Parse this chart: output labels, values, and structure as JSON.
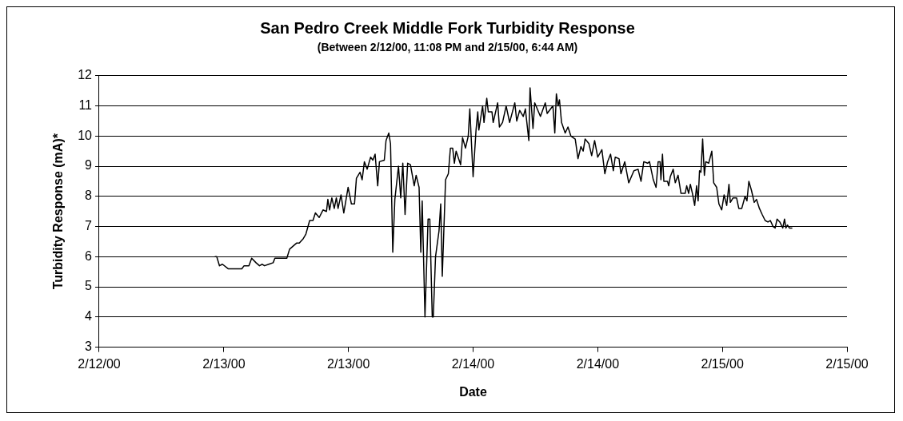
{
  "chart_data": {
    "type": "line",
    "title": "San Pedro Creek Middle Fork Turbidity Response",
    "subtitle": "(Between 2/12/00, 11:08 PM and 2/15/00, 6:44 AM)",
    "xlabel": "Date",
    "ylabel": "Turbidity Response (mA)*",
    "xlim": [
      "2000-02-12T12:00",
      "2000-02-15T12:00"
    ],
    "xticks": [
      {
        "value": "2000-02-12T12:00",
        "label": "2/12/00"
      },
      {
        "value": "2000-02-13T00:00",
        "label": "2/13/00"
      },
      {
        "value": "2000-02-13T12:00",
        "label": "2/13/00"
      },
      {
        "value": "2000-02-14T00:00",
        "label": "2/14/00"
      },
      {
        "value": "2000-02-14T12:00",
        "label": "2/14/00"
      },
      {
        "value": "2000-02-15T00:00",
        "label": "2/15/00"
      },
      {
        "value": "2000-02-15T12:00",
        "label": "2/15/00"
      }
    ],
    "ylim": [
      3,
      12
    ],
    "yticks": [
      3,
      4,
      5,
      6,
      7,
      8,
      9,
      10,
      11,
      12
    ],
    "grid": "y",
    "legend": false,
    "marker": "none",
    "line_style": "solid",
    "series": [
      {
        "color": "#000000",
        "x": [
          "2000-02-12T23:08",
          "2000-02-12T23:19",
          "2000-02-12T23:35",
          "2000-02-12T23:52",
          "2000-02-13T00:25",
          "2000-02-13T01:44",
          "2000-02-13T01:57",
          "2000-02-13T02:25",
          "2000-02-13T02:41",
          "2000-02-13T03:06",
          "2000-02-13T03:26",
          "2000-02-13T03:42",
          "2000-02-13T03:55",
          "2000-02-13T04:20",
          "2000-02-13T04:45",
          "2000-02-13T04:55",
          "2000-02-13T06:04",
          "2000-02-13T06:20",
          "2000-02-13T06:40",
          "2000-02-13T07:00",
          "2000-02-13T07:16",
          "2000-02-13T07:39",
          "2000-02-13T07:54",
          "2000-02-13T08:16",
          "2000-02-13T08:35",
          "2000-02-13T08:49",
          "2000-02-13T09:11",
          "2000-02-13T09:33",
          "2000-02-13T09:53",
          "2000-02-13T10:01",
          "2000-02-13T10:11",
          "2000-02-13T10:24",
          "2000-02-13T10:38",
          "2000-02-13T10:50",
          "2000-02-13T11:00",
          "2000-02-13T11:17",
          "2000-02-13T11:33",
          "2000-02-13T11:58",
          "2000-02-13T12:17",
          "2000-02-13T12:35",
          "2000-02-13T12:46",
          "2000-02-13T13:07",
          "2000-02-13T13:19",
          "2000-02-13T13:32",
          "2000-02-13T13:48",
          "2000-02-13T14:08",
          "2000-02-13T14:21",
          "2000-02-13T14:34",
          "2000-02-13T14:49",
          "2000-02-13T14:59",
          "2000-02-13T15:27",
          "2000-02-13T15:37",
          "2000-02-13T15:53",
          "2000-02-13T16:03",
          "2000-02-13T16:16",
          "2000-02-13T16:28",
          "2000-02-13T16:49",
          "2000-02-13T17:02",
          "2000-02-13T17:14",
          "2000-02-13T17:27",
          "2000-02-13T17:42",
          "2000-02-13T17:58",
          "2000-02-13T18:20",
          "2000-02-13T18:31",
          "2000-02-13T18:48",
          "2000-02-13T18:58",
          "2000-02-13T19:06",
          "2000-02-13T19:22",
          "2000-02-13T19:40",
          "2000-02-13T19:50",
          "2000-02-13T20:04",
          "2000-02-13T20:10",
          "2000-02-13T20:23",
          "2000-02-13T20:43",
          "2000-02-13T20:53",
          "2000-02-13T21:02",
          "2000-02-13T21:21",
          "2000-02-13T21:37",
          "2000-02-13T21:49",
          "2000-02-13T22:02",
          "2000-02-13T22:12",
          "2000-02-13T22:22",
          "2000-02-13T22:48",
          "2000-02-13T22:59",
          "2000-02-13T23:16",
          "2000-02-13T23:32",
          "2000-02-13T23:41",
          "2000-02-14T00:00",
          "2000-02-14T00:17",
          "2000-02-14T00:27",
          "2000-02-14T00:33",
          "2000-02-14T00:55",
          "2000-02-14T01:03",
          "2000-02-14T01:19",
          "2000-02-14T01:28",
          "2000-02-14T01:49",
          "2000-02-14T01:56",
          "2000-02-14T02:22",
          "2000-02-14T02:32",
          "2000-02-14T02:50",
          "2000-02-14T03:11",
          "2000-02-14T03:31",
          "2000-02-14T04:01",
          "2000-02-14T04:12",
          "2000-02-14T04:29",
          "2000-02-14T04:50",
          "2000-02-14T05:02",
          "2000-02-14T05:22",
          "2000-02-14T05:29",
          "2000-02-14T05:46",
          "2000-02-14T05:56",
          "2000-02-14T06:29",
          "2000-02-14T06:57",
          "2000-02-14T07:08",
          "2000-02-14T07:41",
          "2000-02-14T07:52",
          "2000-02-14T08:01",
          "2000-02-14T08:11",
          "2000-02-14T08:19",
          "2000-02-14T08:31",
          "2000-02-14T08:52",
          "2000-02-14T09:08",
          "2000-02-14T09:25",
          "2000-02-14T09:50",
          "2000-02-14T10:06",
          "2000-02-14T10:23",
          "2000-02-14T10:36",
          "2000-02-14T10:47",
          "2000-02-14T11:09",
          "2000-02-14T11:25",
          "2000-02-14T11:42",
          "2000-02-14T12:00",
          "2000-02-14T12:24",
          "2000-02-14T12:41",
          "2000-02-14T12:57",
          "2000-02-14T13:14",
          "2000-02-14T13:30",
          "2000-02-14T13:41",
          "2000-02-14T14:03",
          "2000-02-14T14:14",
          "2000-02-14T14:36",
          "2000-02-14T14:59",
          "2000-02-14T15:29",
          "2000-02-14T15:53",
          "2000-02-14T16:10",
          "2000-02-14T16:26",
          "2000-02-14T16:48",
          "2000-02-14T16:59",
          "2000-02-14T17:21",
          "2000-02-14T17:37",
          "2000-02-14T17:49",
          "2000-02-14T18:00",
          "2000-02-14T18:05",
          "2000-02-14T18:14",
          "2000-02-14T18:22",
          "2000-02-14T18:43",
          "2000-02-14T18:50",
          "2000-02-14T18:59",
          "2000-02-14T19:16",
          "2000-02-14T19:28",
          "2000-02-14T19:44",
          "2000-02-14T20:01",
          "2000-02-14T20:25",
          "2000-02-14T20:34",
          "2000-02-14T20:45",
          "2000-02-14T20:55",
          "2000-02-14T21:07",
          "2000-02-14T21:20",
          "2000-02-14T21:31",
          "2000-02-14T21:40",
          "2000-02-14T21:48",
          "2000-02-14T21:56",
          "2000-02-14T22:06",
          "2000-02-14T22:16",
          "2000-02-14T22:24",
          "2000-02-14T22:41",
          "2000-02-14T22:59",
          "2000-02-14T23:10",
          "2000-02-14T23:27",
          "2000-02-14T23:40",
          "2000-02-14T23:56",
          "2000-02-15T00:10",
          "2000-02-15T00:25",
          "2000-02-15T00:38",
          "2000-02-15T00:46",
          "2000-02-15T01:02",
          "2000-02-15T01:22",
          "2000-02-15T01:35",
          "2000-02-15T01:52",
          "2000-02-15T02:11",
          "2000-02-15T02:22",
          "2000-02-15T02:33",
          "2000-02-15T02:48",
          "2000-02-15T03:04",
          "2000-02-15T03:17",
          "2000-02-15T03:34",
          "2000-02-15T03:50",
          "2000-02-15T04:07",
          "2000-02-15T04:23",
          "2000-02-15T04:37",
          "2000-02-15T04:53",
          "2000-02-15T05:05",
          "2000-02-15T05:16",
          "2000-02-15T05:32",
          "2000-02-15T05:49",
          "2000-02-15T05:59",
          "2000-02-15T06:07",
          "2000-02-15T06:16",
          "2000-02-15T06:27",
          "2000-02-15T06:44"
        ],
        "values": [
          6.0,
          6.0,
          5.7,
          5.75,
          5.6,
          5.6,
          5.7,
          5.7,
          5.95,
          5.8,
          5.7,
          5.75,
          5.7,
          5.75,
          5.8,
          5.95,
          5.95,
          6.25,
          6.35,
          6.45,
          6.45,
          6.6,
          6.75,
          7.2,
          7.2,
          7.45,
          7.3,
          7.55,
          7.5,
          7.9,
          7.55,
          7.95,
          7.6,
          7.95,
          7.6,
          8.05,
          7.45,
          8.3,
          7.75,
          7.75,
          8.6,
          8.8,
          8.55,
          9.15,
          8.9,
          9.3,
          9.2,
          9.4,
          8.35,
          9.15,
          9.2,
          9.85,
          10.1,
          9.75,
          6.15,
          7.9,
          9.0,
          7.95,
          9.1,
          7.4,
          9.1,
          9.05,
          8.35,
          8.7,
          8.3,
          6.15,
          7.85,
          4.0,
          7.25,
          7.25,
          4.0,
          4.0,
          6.0,
          6.85,
          7.75,
          5.35,
          8.55,
          8.75,
          9.6,
          9.6,
          9.1,
          9.5,
          9.05,
          9.95,
          9.6,
          10.0,
          10.9,
          8.65,
          10.2,
          10.8,
          10.2,
          11.0,
          10.45,
          11.25,
          10.8,
          10.8,
          10.45,
          11.1,
          10.3,
          10.45,
          11.0,
          10.45,
          11.1,
          10.5,
          10.85,
          10.65,
          10.9,
          9.85,
          11.6,
          10.25,
          11.1,
          10.65,
          11.1,
          10.75,
          11.0,
          10.1,
          11.4,
          11.0,
          11.2,
          10.45,
          10.1,
          10.3,
          10.0,
          9.9,
          9.25,
          9.65,
          9.5,
          9.9,
          9.75,
          9.35,
          9.85,
          9.3,
          9.55,
          8.75,
          9.15,
          9.4,
          8.85,
          9.3,
          9.25,
          8.75,
          9.15,
          8.45,
          8.85,
          8.9,
          8.5,
          9.15,
          9.1,
          9.15,
          8.55,
          8.3,
          9.15,
          9.15,
          8.55,
          9.4,
          8.5,
          8.5,
          8.35,
          8.65,
          8.9,
          8.45,
          8.7,
          8.1,
          8.1,
          8.35,
          8.1,
          8.4,
          8.1,
          7.7,
          8.35,
          7.85,
          8.85,
          8.8,
          9.9,
          8.7,
          9.15,
          9.1,
          9.5,
          8.45,
          8.3,
          7.75,
          7.55,
          8.05,
          7.7,
          8.4,
          7.8,
          7.95,
          7.95,
          7.6,
          7.6,
          8.0,
          7.85,
          8.5,
          8.2,
          7.8,
          7.9,
          7.6,
          7.4,
          7.2,
          7.15,
          7.2,
          7.0,
          6.95,
          7.25,
          7.15,
          6.95,
          7.25,
          6.95,
          7.05,
          6.95,
          6.95
        ]
      }
    ]
  }
}
